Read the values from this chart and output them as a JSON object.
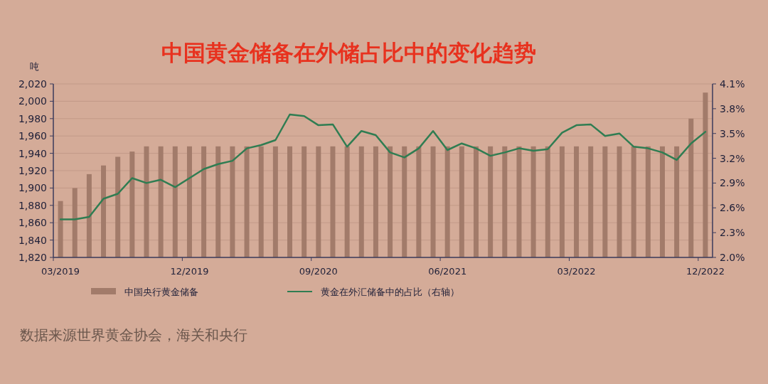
{
  "chart_data": {
    "type": "bar",
    "title": "中国黄金储备在外储占比中的变化趋势",
    "ylabel": "吨",
    "categories": [
      "03/2019",
      null,
      null,
      null,
      null,
      null,
      null,
      null,
      null,
      "12/2019",
      null,
      null,
      null,
      null,
      null,
      null,
      null,
      null,
      "09/2020",
      null,
      null,
      null,
      null,
      null,
      null,
      null,
      null,
      "06/2021",
      null,
      null,
      null,
      null,
      null,
      null,
      null,
      null,
      "03/2022",
      null,
      null,
      null,
      null,
      null,
      null,
      null,
      null,
      "12/2022"
    ],
    "series": [
      {
        "name": "中国央行黄金储备",
        "color": "#a27b6a",
        "values": [
          1885,
          1900,
          1916,
          1926,
          1936,
          1942,
          1948,
          1948,
          1948,
          1948,
          1948,
          1948,
          1948,
          1948,
          1948,
          1948,
          1948,
          1948,
          1948,
          1948,
          1948,
          1948,
          1948,
          1948,
          1948,
          1948,
          1948,
          1948,
          1948,
          1948,
          1948,
          1948,
          1948,
          1948,
          1948,
          1948,
          1948,
          1948,
          1948,
          1948,
          1948,
          1948,
          1948,
          1948,
          1980,
          2010
        ]
      },
      {
        "name": "黄金在外汇储备中的占比（右轴）",
        "type": "line",
        "axis": "y2",
        "color": "#2f7d52",
        "values": [
          2.46,
          2.46,
          2.49,
          2.71,
          2.77,
          2.96,
          2.9,
          2.94,
          2.85,
          2.96,
          3.07,
          3.13,
          3.17,
          3.32,
          3.36,
          3.42,
          3.73,
          3.71,
          3.6,
          3.61,
          3.34,
          3.53,
          3.48,
          3.27,
          3.21,
          3.32,
          3.53,
          3.3,
          3.38,
          3.32,
          3.23,
          3.27,
          3.32,
          3.29,
          3.31,
          3.51,
          3.6,
          3.61,
          3.47,
          3.5,
          3.34,
          3.32,
          3.27,
          3.18,
          3.38,
          3.52
        ]
      }
    ],
    "ylim": [
      1820,
      2020
    ],
    "yticks": [
      {
        "value": 1820,
        "label": "1,820"
      },
      {
        "value": 1840,
        "label": "1,840"
      },
      {
        "value": 1860,
        "label": "1,860"
      },
      {
        "value": 1880,
        "label": "1,880"
      },
      {
        "value": 1900,
        "label": "1,900"
      },
      {
        "value": 1920,
        "label": "1,920"
      },
      {
        "value": 1940,
        "label": "1,940"
      },
      {
        "value": 1960,
        "label": "1,960"
      },
      {
        "value": 1980,
        "label": "1,980"
      },
      {
        "value": 2000,
        "label": "2,000"
      },
      {
        "value": 2020,
        "label": "2,020"
      }
    ],
    "y2lim": [
      2.0,
      4.1
    ],
    "y2ticks": [
      {
        "value": 2.0,
        "label": "2.0%"
      },
      {
        "value": 2.3,
        "label": "2.3%"
      },
      {
        "value": 2.6,
        "label": "2.6%"
      },
      {
        "value": 2.9,
        "label": "2.9%"
      },
      {
        "value": 3.2,
        "label": "3.2%"
      },
      {
        "value": 3.5,
        "label": "3.5%"
      },
      {
        "value": 3.8,
        "label": "3.8%"
      },
      {
        "value": 4.1,
        "label": "4.1%"
      }
    ],
    "grid": "y",
    "legend": "bottom",
    "marker": "none",
    "line_style": "solid",
    "annotations": [
      "数据来源世界黄金协会，海关和央行"
    ]
  }
}
